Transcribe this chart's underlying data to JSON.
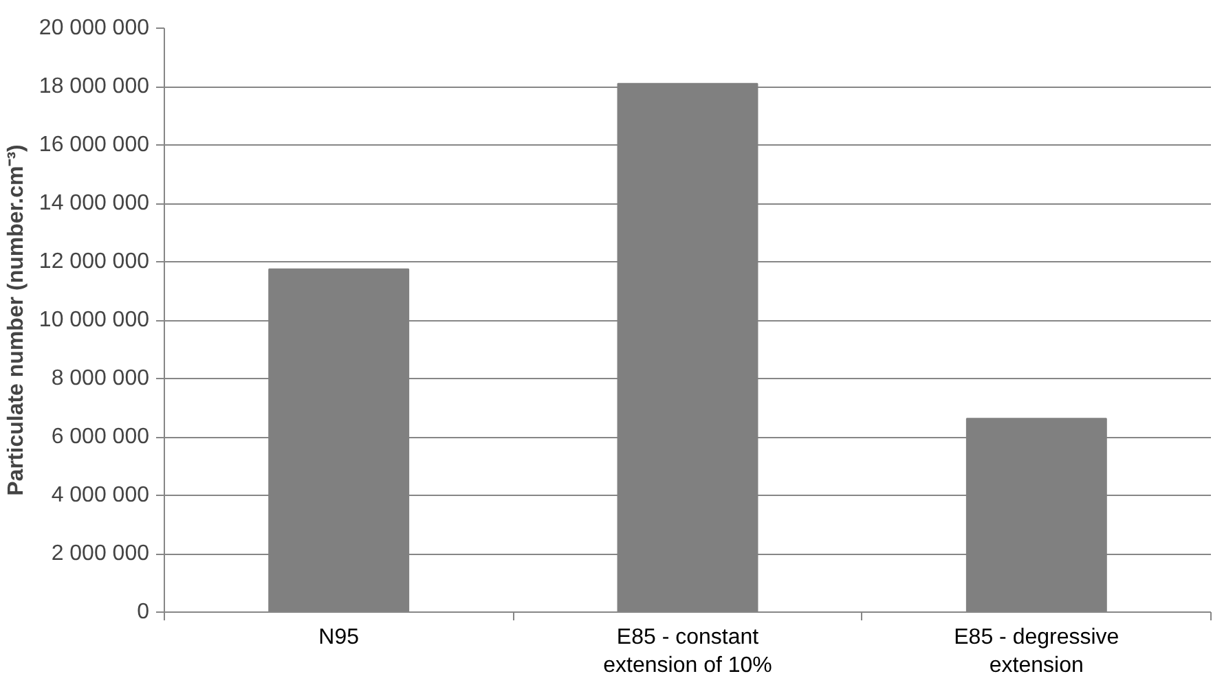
{
  "chart_data": {
    "type": "bar",
    "ylabel": "Particulate number (number.cm⁻³)",
    "categories": [
      "N95",
      "E85 - constant extension of 10%",
      "E85 - degressive extension"
    ],
    "values": [
      11750000,
      18100000,
      6630000
    ],
    "color": "#808080",
    "ylim": [
      0,
      20000000
    ],
    "yticks": [
      {
        "value": 0,
        "label": "0"
      },
      {
        "value": 2000000,
        "label": "2 000 000"
      },
      {
        "value": 4000000,
        "label": "4 000 000"
      },
      {
        "value": 6000000,
        "label": "6 000 000"
      },
      {
        "value": 8000000,
        "label": "8 000 000"
      },
      {
        "value": 10000000,
        "label": "10 000 000"
      },
      {
        "value": 12000000,
        "label": "12 000 000"
      },
      {
        "value": 14000000,
        "label": "14 000 000"
      },
      {
        "value": 16000000,
        "label": "16 000 000"
      },
      {
        "value": 18000000,
        "label": "18 000 000"
      },
      {
        "value": 20000000,
        "label": "20 000 000"
      }
    ],
    "grid": "y"
  }
}
